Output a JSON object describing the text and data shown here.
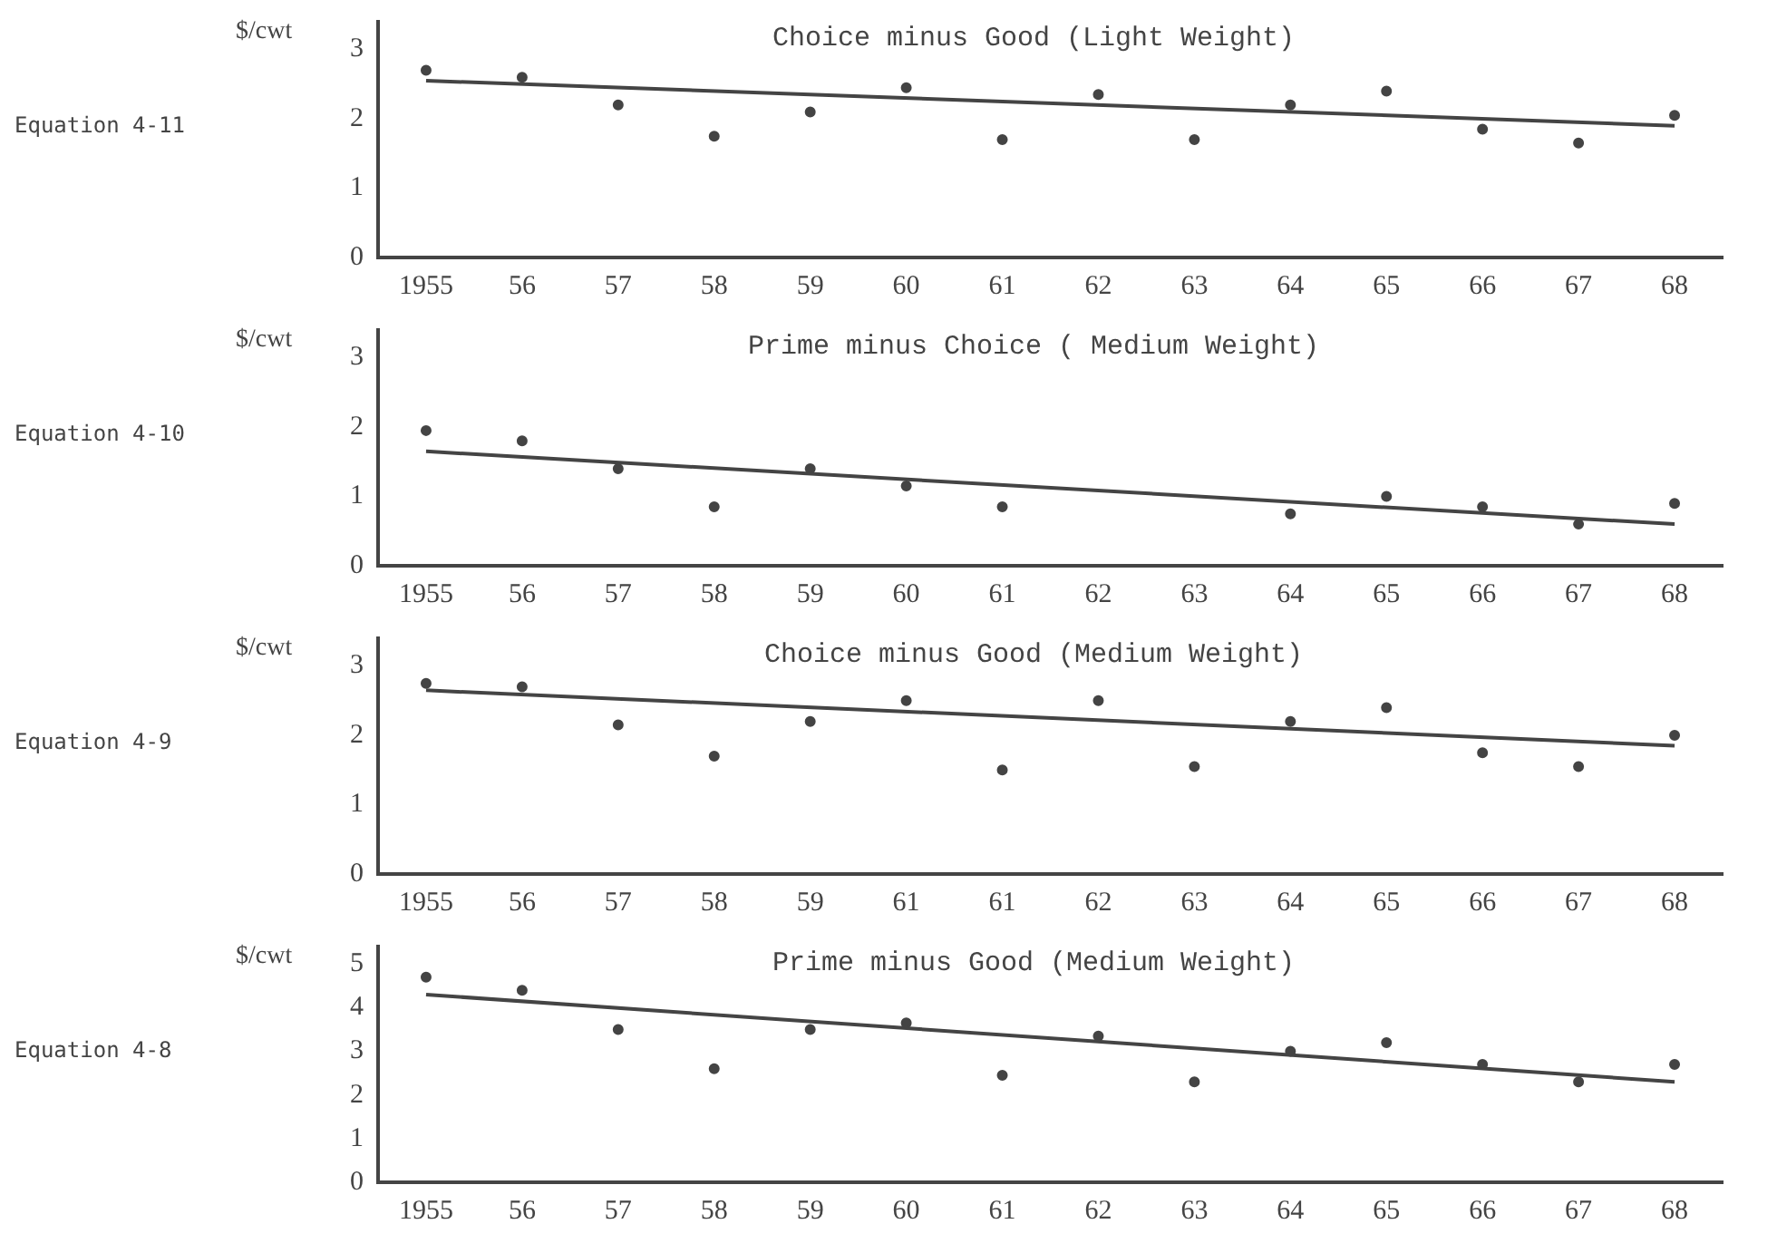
{
  "chart_data": [
    {
      "type": "scatter",
      "title": "Choice minus Good (Light Weight)",
      "ylabel": "$/cwt",
      "annotations": [
        "Equation 4-11"
      ],
      "categories": [
        "1955",
        "56",
        "57",
        "58",
        "59",
        "60",
        "61",
        "62",
        "63",
        "64",
        "65",
        "66",
        "67",
        "68"
      ],
      "ylim": [
        0,
        3.4
      ],
      "yticks": [
        0,
        1,
        2,
        3
      ],
      "grid": false,
      "legend": false,
      "marker": "circle",
      "series": [
        {
          "color": "#444444",
          "values": [
            2.7,
            2.6,
            2.2,
            1.75,
            2.1,
            2.45,
            1.7,
            2.35,
            1.7,
            2.2,
            2.4,
            1.85,
            1.65,
            2.05
          ]
        },
        {
          "type": "line",
          "color": "#444444",
          "marker": "none",
          "values": [
            2.55,
            null,
            null,
            null,
            null,
            null,
            null,
            null,
            null,
            null,
            null,
            null,
            null,
            1.9
          ]
        }
      ]
    },
    {
      "type": "scatter",
      "title": "Prime minus Choice ( Medium Weight)",
      "ylabel": "$/cwt",
      "annotations": [
        "Equation 4-10"
      ],
      "categories": [
        "1955",
        "56",
        "57",
        "58",
        "59",
        "60",
        "61",
        "62",
        "63",
        "64",
        "65",
        "66",
        "67",
        "68"
      ],
      "ylim": [
        0,
        3.4
      ],
      "yticks": [
        0,
        1,
        2,
        3
      ],
      "grid": false,
      "legend": false,
      "marker": "circle",
      "series": [
        {
          "color": "#444444",
          "values": [
            1.95,
            1.8,
            1.4,
            0.85,
            1.4,
            1.15,
            0.85,
            null,
            null,
            0.75,
            1.0,
            0.85,
            0.6,
            0.9
          ]
        },
        {
          "type": "line",
          "color": "#444444",
          "marker": "none",
          "values": [
            1.65,
            null,
            null,
            null,
            null,
            null,
            null,
            null,
            null,
            null,
            null,
            null,
            null,
            0.6
          ]
        }
      ]
    },
    {
      "type": "scatter",
      "title": "Choice minus Good (Medium Weight)",
      "ylabel": "$/cwt",
      "annotations": [
        "Equation 4-9"
      ],
      "categories": [
        "1955",
        "56",
        "57",
        "58",
        "59",
        "61",
        "61",
        "62",
        "63",
        "64",
        "65",
        "66",
        "67",
        "68"
      ],
      "ylim": [
        0,
        3.4
      ],
      "yticks": [
        0,
        1,
        2,
        3
      ],
      "grid": false,
      "legend": false,
      "marker": "circle",
      "series": [
        {
          "color": "#444444",
          "values": [
            2.75,
            2.7,
            2.15,
            1.7,
            2.2,
            2.5,
            1.5,
            2.5,
            1.55,
            2.2,
            2.4,
            1.75,
            1.55,
            2.0
          ]
        },
        {
          "type": "line",
          "color": "#444444",
          "marker": "none",
          "values": [
            2.65,
            null,
            null,
            null,
            null,
            null,
            null,
            null,
            null,
            null,
            null,
            null,
            null,
            1.85
          ]
        }
      ]
    },
    {
      "type": "scatter",
      "title": "Prime minus Good (Medium Weight)",
      "ylabel": "$/cwt",
      "annotations": [
        "Equation 4-8"
      ],
      "categories": [
        "1955",
        "56",
        "57",
        "58",
        "59",
        "60",
        "61",
        "62",
        "63",
        "64",
        "65",
        "66",
        "67",
        "68"
      ],
      "ylim": [
        0,
        5.4
      ],
      "yticks": [
        0,
        1,
        2,
        3,
        4,
        5
      ],
      "grid": false,
      "legend": false,
      "marker": "circle",
      "series": [
        {
          "color": "#444444",
          "values": [
            4.7,
            4.4,
            3.5,
            2.6,
            3.5,
            3.65,
            2.45,
            3.35,
            2.3,
            3.0,
            3.2,
            2.7,
            2.3,
            2.7
          ]
        },
        {
          "type": "line",
          "color": "#444444",
          "marker": "none",
          "values": [
            4.3,
            null,
            null,
            null,
            null,
            null,
            null,
            null,
            null,
            null,
            null,
            null,
            null,
            2.3
          ]
        }
      ]
    }
  ]
}
